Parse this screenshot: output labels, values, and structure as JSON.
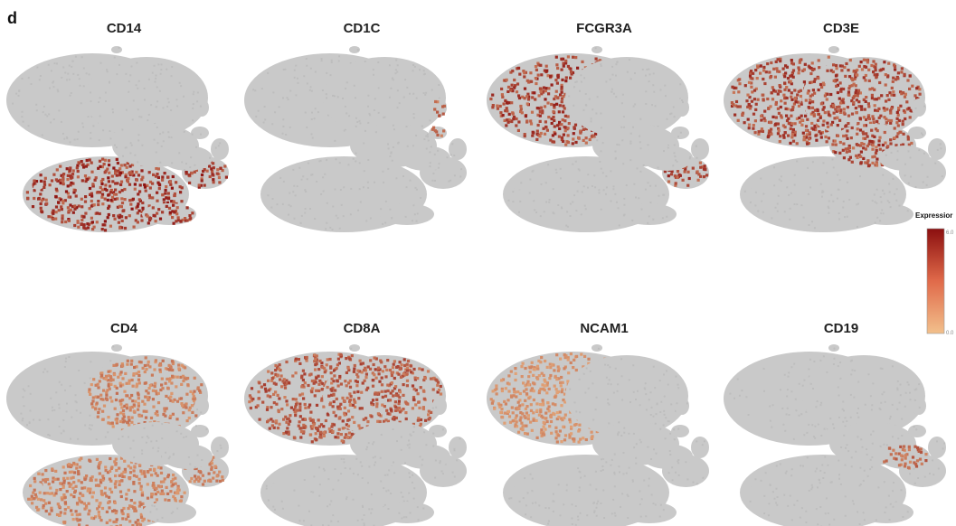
{
  "figure": {
    "panel_label": "d"
  },
  "chart_data": {
    "type": "scatter",
    "description_kind": "tSNE feature plots",
    "panels": [
      {
        "gene": "CD14",
        "highlight": "monocyte",
        "level": 0.85
      },
      {
        "gene": "CD1C",
        "highlight": "dc",
        "level": 0.55
      },
      {
        "gene": "FCGR3A",
        "highlight": "nk_mono16",
        "level": 0.8
      },
      {
        "gene": "CD3E",
        "highlight": "tcell",
        "level": 0.75
      },
      {
        "gene": "CD4",
        "highlight": "cd4",
        "level": 0.4
      },
      {
        "gene": "CD8A",
        "highlight": "cd8",
        "level": 0.65
      },
      {
        "gene": "NCAM1",
        "highlight": "nk",
        "level": 0.3
      },
      {
        "gene": "CD19",
        "highlight": "bcell",
        "level": 0.55
      }
    ],
    "legend": {
      "title": "Expressior",
      "max_label": "6.0",
      "min_label": "0.0",
      "low_color": "#f2c08c",
      "high_color": "#8b0f0f",
      "base_color": "#c9c9c9"
    }
  }
}
